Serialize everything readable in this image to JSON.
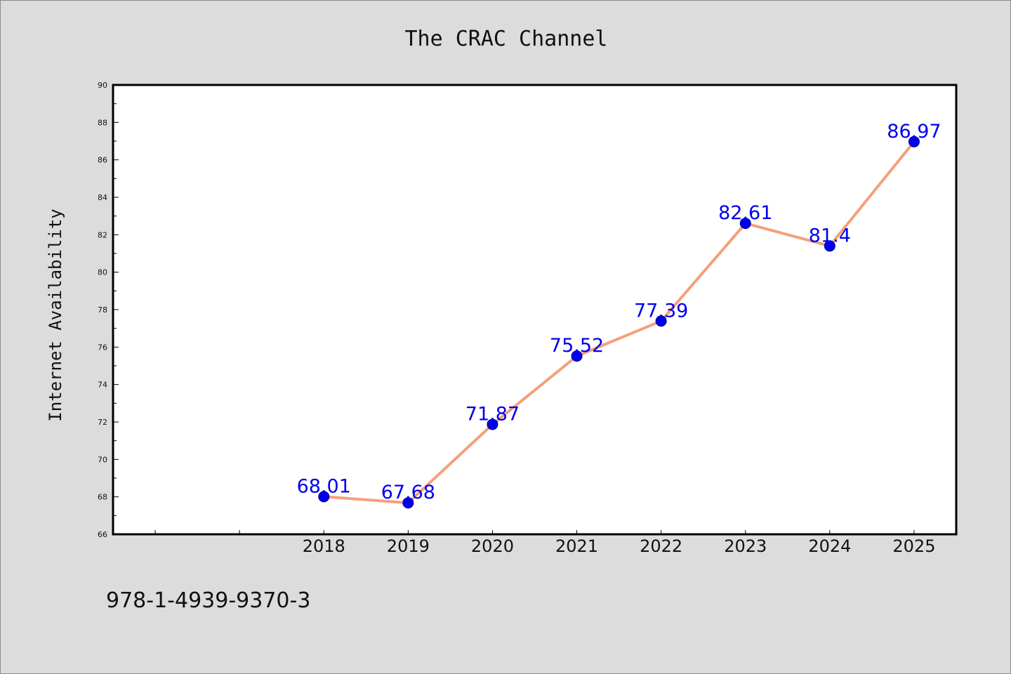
{
  "colors": {
    "background": "#dcdcdc",
    "plot_background": "#ffffff",
    "line": "#f4a07c",
    "marker_fill": "#0000ee",
    "marker_edge": "#00008b",
    "data_label": "#0000ee"
  },
  "footnote": "978-1-4939-9370-3",
  "chart_data": {
    "type": "line",
    "title": "The CRAC Channel",
    "xlabel": "",
    "ylabel": "Internet Availability",
    "ylim": [
      66,
      90
    ],
    "yticks": [
      66,
      68,
      70,
      72,
      74,
      76,
      78,
      80,
      82,
      84,
      86,
      88,
      90
    ],
    "xlim": [
      2015.5,
      2025.5
    ],
    "x": [
      2018,
      2019,
      2020,
      2021,
      2022,
      2023,
      2024,
      2025
    ],
    "values": [
      68.01,
      67.68,
      71.87,
      75.52,
      77.39,
      82.61,
      81.4,
      86.97
    ],
    "data_labels": [
      "68.01",
      "67.68",
      "71.87",
      "75.52",
      "77.39",
      "82.61",
      "81.4",
      "86.97"
    ],
    "grid": false,
    "markers": true
  }
}
